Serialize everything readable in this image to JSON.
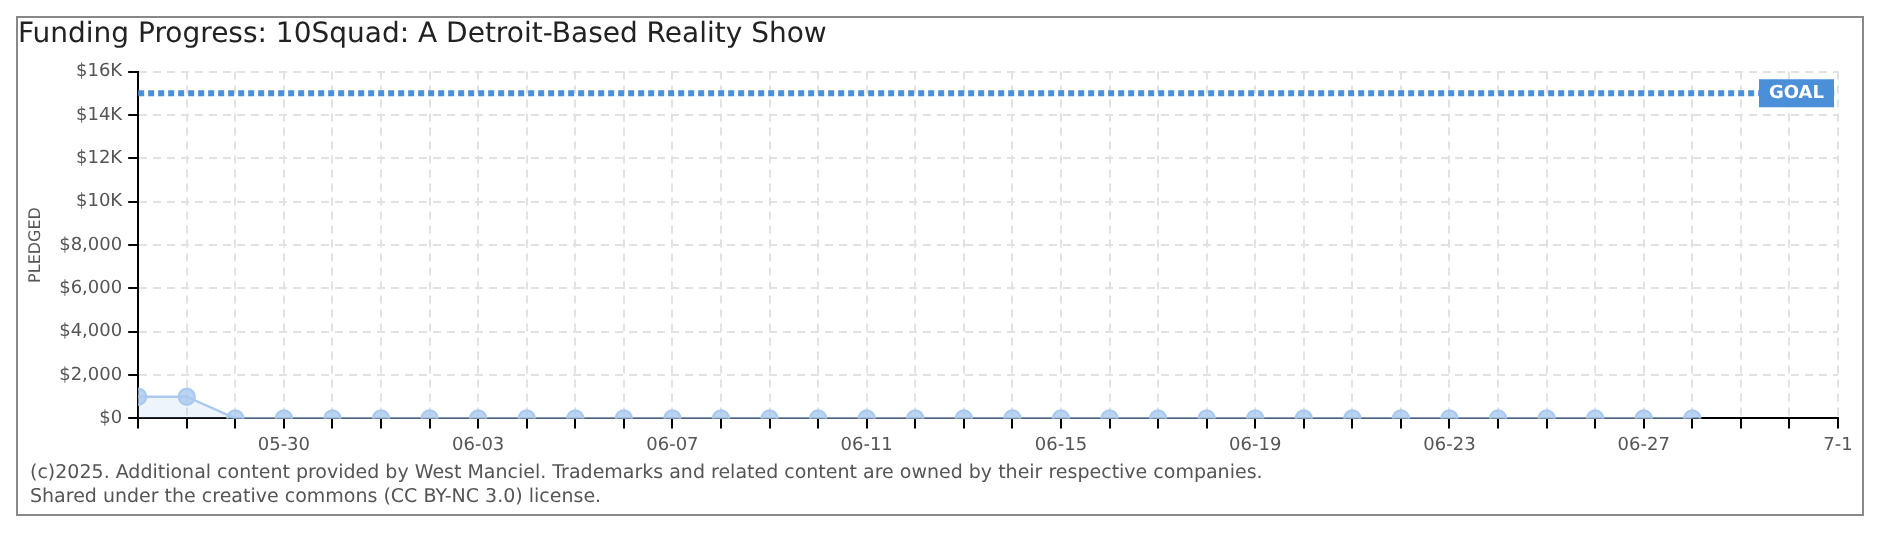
{
  "chart_data": {
    "type": "area",
    "title": "Funding Progress: 10Squad: A Detroit-Based Reality Show",
    "ylabel": "PLEDGED",
    "x": [
      "2025-05-27",
      "2025-05-28",
      "2025-05-29",
      "2025-05-30",
      "2025-05-31",
      "2025-06-01",
      "2025-06-02",
      "2025-06-03",
      "2025-06-04",
      "2025-06-05",
      "2025-06-06",
      "2025-06-07",
      "2025-06-08",
      "2025-06-09",
      "2025-06-10",
      "2025-06-11",
      "2025-06-12",
      "2025-06-13",
      "2025-06-14",
      "2025-06-15",
      "2025-06-16",
      "2025-06-17",
      "2025-06-18",
      "2025-06-19",
      "2025-06-20",
      "2025-06-21",
      "2025-06-22",
      "2025-06-23",
      "2025-06-24",
      "2025-06-25",
      "2025-06-26",
      "2025-06-27",
      "2025-06-28"
    ],
    "series": [
      {
        "color": "#a9c9ee",
        "values": [
          1000,
          1000,
          0,
          0,
          0,
          0,
          0,
          0,
          0,
          0,
          0,
          0,
          0,
          0,
          0,
          0,
          0,
          0,
          0,
          0,
          0,
          0,
          0,
          0,
          0,
          0,
          0,
          0,
          0,
          0,
          0,
          0,
          0
        ]
      }
    ],
    "xlim": [
      "2025-05-27",
      "2025-07-01"
    ],
    "xticks": [
      {
        "value": "2025-05-27",
        "label": null
      },
      {
        "value": "2025-05-28",
        "label": null
      },
      {
        "value": "2025-05-29",
        "label": null
      },
      {
        "value": "2025-05-30",
        "label": "05-30"
      },
      {
        "value": "2025-05-31",
        "label": null
      },
      {
        "value": "2025-06-01",
        "label": null
      },
      {
        "value": "2025-06-02",
        "label": null
      },
      {
        "value": "2025-06-03",
        "label": "06-03"
      },
      {
        "value": "2025-06-04",
        "label": null
      },
      {
        "value": "2025-06-05",
        "label": null
      },
      {
        "value": "2025-06-06",
        "label": null
      },
      {
        "value": "2025-06-07",
        "label": "06-07"
      },
      {
        "value": "2025-06-08",
        "label": null
      },
      {
        "value": "2025-06-09",
        "label": null
      },
      {
        "value": "2025-06-10",
        "label": null
      },
      {
        "value": "2025-06-11",
        "label": "06-11"
      },
      {
        "value": "2025-06-12",
        "label": null
      },
      {
        "value": "2025-06-13",
        "label": null
      },
      {
        "value": "2025-06-14",
        "label": null
      },
      {
        "value": "2025-06-15",
        "label": "06-15"
      },
      {
        "value": "2025-06-16",
        "label": null
      },
      {
        "value": "2025-06-17",
        "label": null
      },
      {
        "value": "2025-06-18",
        "label": null
      },
      {
        "value": "2025-06-19",
        "label": "06-19"
      },
      {
        "value": "2025-06-20",
        "label": null
      },
      {
        "value": "2025-06-21",
        "label": null
      },
      {
        "value": "2025-06-22",
        "label": null
      },
      {
        "value": "2025-06-23",
        "label": "06-23"
      },
      {
        "value": "2025-06-24",
        "label": null
      },
      {
        "value": "2025-06-25",
        "label": null
      },
      {
        "value": "2025-06-26",
        "label": null
      },
      {
        "value": "2025-06-27",
        "label": "06-27"
      },
      {
        "value": "2025-06-28",
        "label": null
      },
      {
        "value": "2025-06-29",
        "label": null
      },
      {
        "value": "2025-06-30",
        "label": null
      },
      {
        "value": "2025-07-01",
        "label": "7-1"
      }
    ],
    "ylim": [
      0,
      16000
    ],
    "yticks": [
      {
        "value": 0,
        "label": "$0"
      },
      {
        "value": 2000,
        "label": "$2,000"
      },
      {
        "value": 4000,
        "label": "$4,000"
      },
      {
        "value": 6000,
        "label": "$6,000"
      },
      {
        "value": 8000,
        "label": "$8,000"
      },
      {
        "value": 10000,
        "label": "$10K"
      },
      {
        "value": 12000,
        "label": "$12K"
      },
      {
        "value": 14000,
        "label": "$14K"
      },
      {
        "value": 16000,
        "label": "$16K"
      }
    ],
    "ref_lines": [
      {
        "axis": "y",
        "value": 15000,
        "label": "GOAL",
        "color": "#4a8fd8",
        "line_style": "dotted"
      }
    ],
    "grid": true,
    "legend": false,
    "marker": "circle",
    "line_style": "solid",
    "annotations": [
      "(c)2025. Additional content provided by West Manciel. Trademarks and related content are owned by their respective companies.",
      "Shared under the creative commons (CC BY-NC 3.0) license."
    ]
  }
}
